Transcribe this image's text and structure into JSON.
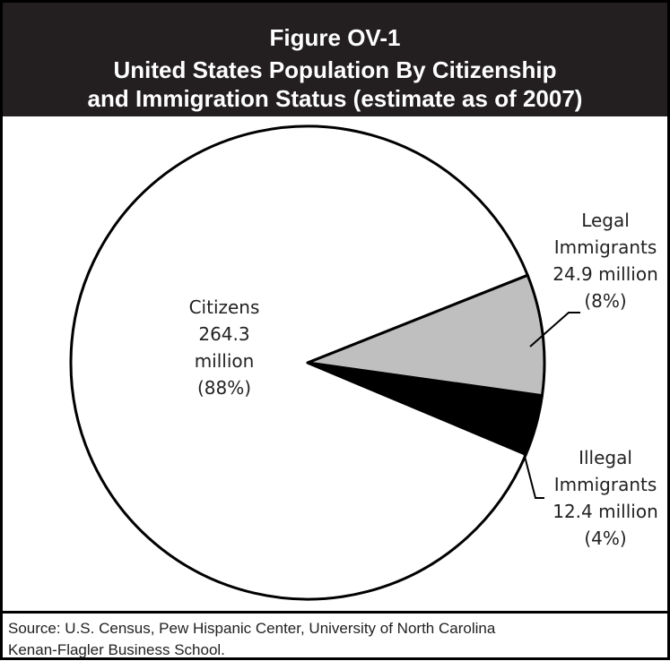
{
  "header": {
    "line1": "Figure OV-1",
    "line2": "United States Population By Citizenship",
    "line3": "and Immigration Status (estimate as of 2007)"
  },
  "chart_data": {
    "type": "pie",
    "title": "United States Population By Citizenship and Immigration Status (estimate as of 2007)",
    "slices": [
      {
        "name": "Citizens",
        "value": 264.3,
        "value_label": "264.3 million",
        "percent": 88,
        "percent_label": "(88%)",
        "color": "#ffffff"
      },
      {
        "name": "Legal Immigrants",
        "value": 24.9,
        "value_label": "24.9 million",
        "percent": 8,
        "percent_label": "(8%)",
        "color": "#bfbfbf"
      },
      {
        "name": "Illegal Immigrants",
        "value": 12.4,
        "value_label": "12.4 million",
        "percent": 4,
        "percent_label": "(4%)",
        "color": "#000000"
      }
    ],
    "labels": {
      "citizens": [
        "Citizens",
        "264.3",
        "million",
        "(88%)"
      ],
      "legal": [
        "Legal",
        "Immigrants",
        "24.9 million",
        "(8%)"
      ],
      "illegal": [
        "Illegal",
        "Immigrants",
        "12.4 million",
        "(4%)"
      ]
    }
  },
  "source": {
    "line1": "Source:  U.S. Census, Pew Hispanic Center, University of North Carolina",
    "line2": "Kenan-Flagler Business School."
  }
}
